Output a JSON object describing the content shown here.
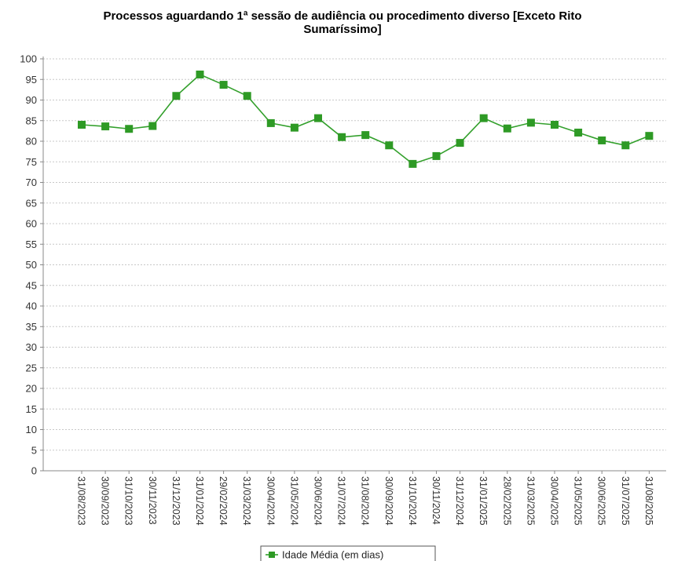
{
  "chart_data": {
    "type": "line",
    "title_line1": "Processos aguardando 1ª sessão de audiência ou procedimento diverso [Exceto Rito",
    "title_line2": "Sumaríssimo]",
    "xlabel": "",
    "ylabel": "",
    "ylim": [
      0,
      100
    ],
    "yticks": [
      0,
      5,
      10,
      15,
      20,
      25,
      30,
      35,
      40,
      45,
      50,
      55,
      60,
      65,
      70,
      75,
      80,
      85,
      90,
      95,
      100
    ],
    "grid": true,
    "legend_position": "bottom",
    "categories": [
      "31/08/2023",
      "30/09/2023",
      "31/10/2023",
      "30/11/2023",
      "31/12/2023",
      "31/01/2024",
      "29/02/2024",
      "31/03/2024",
      "30/04/2024",
      "31/05/2024",
      "30/06/2024",
      "31/07/2024",
      "31/08/2024",
      "30/09/2024",
      "31/10/2024",
      "30/11/2024",
      "31/12/2024",
      "31/01/2025",
      "28/02/2025",
      "31/03/2025",
      "30/04/2025",
      "31/05/2025",
      "30/06/2025",
      "31/07/2025",
      "31/08/2025"
    ],
    "series": [
      {
        "name": "Idade Média (em dias)",
        "color": "#33a02c",
        "marker_color": "#2e9a25",
        "values": [
          84,
          83.6,
          83,
          83.7,
          91,
          96.2,
          93.7,
          91,
          84.4,
          83.3,
          85.6,
          81,
          81.5,
          79,
          74.5,
          76.4,
          79.6,
          85.6,
          83.1,
          84.5,
          84,
          82.1,
          80.2,
          79,
          81.3
        ]
      }
    ]
  }
}
